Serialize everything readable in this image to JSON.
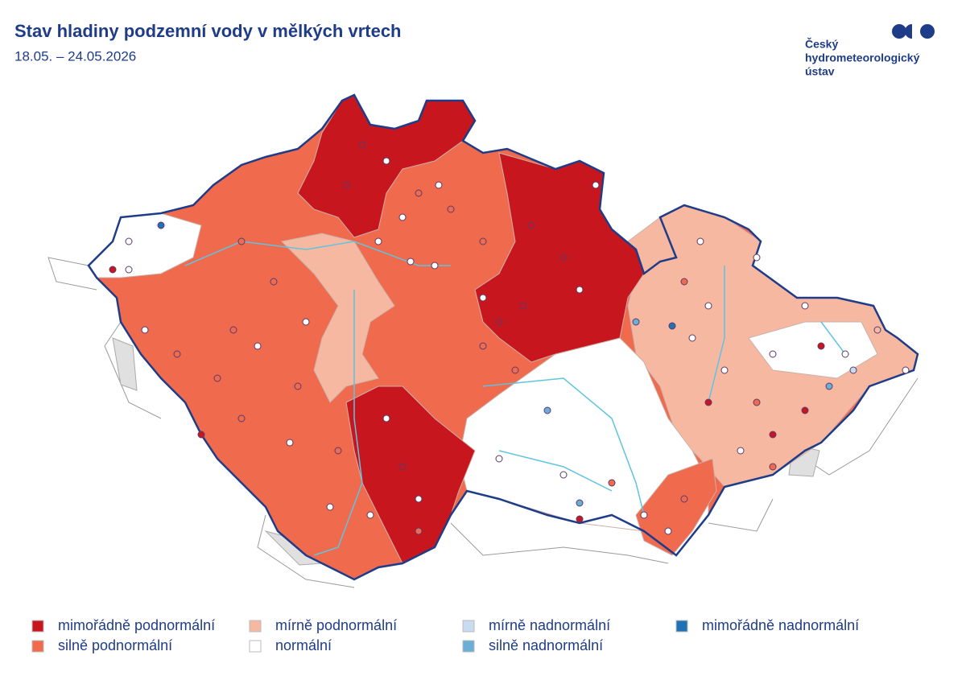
{
  "header": {
    "title": "Stav hladiny podzemní vody v mělkých vrtech",
    "subtitle": "18.05. – 24.05.2026"
  },
  "logo": {
    "lines": [
      "Český",
      "hydrometeorologický",
      "ústav"
    ]
  },
  "legend": {
    "items": [
      {
        "label": "mimořádně podnormální",
        "color": "#c8161e"
      },
      {
        "label": "silně podnormální",
        "color": "#f06a4e"
      },
      {
        "label": "mírně podnormální",
        "color": "#f7b8a2"
      },
      {
        "label": "normální",
        "color": "#ffffff"
      },
      {
        "label": "mírně nadnormální",
        "color": "#c9dbef"
      },
      {
        "label": "silně nadnormální",
        "color": "#6baed6"
      },
      {
        "label": "mimořádně nadnormální",
        "color": "#2171b5"
      }
    ]
  }
}
